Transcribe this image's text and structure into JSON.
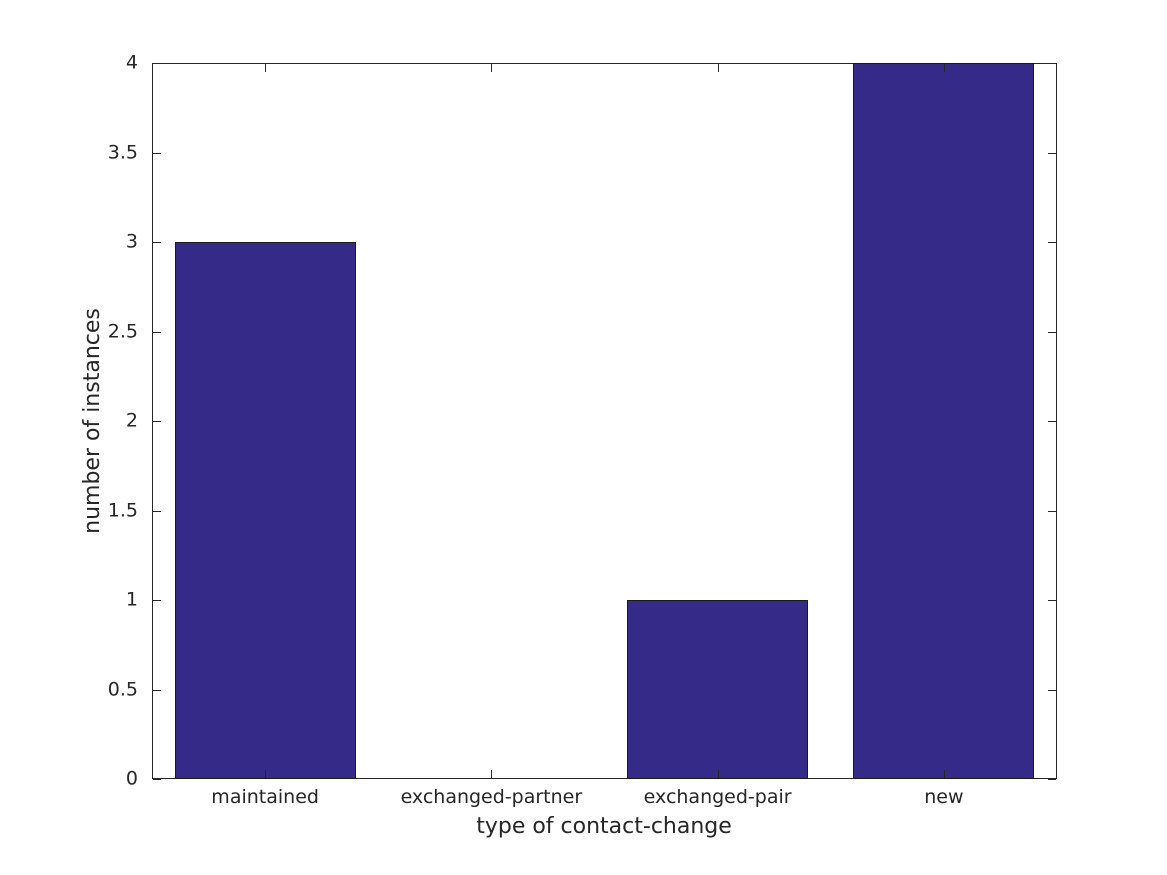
{
  "chart_data": {
    "type": "bar",
    "title": "",
    "categories": [
      "maintained",
      "exchanged-partner",
      "exchanged-pair",
      "new"
    ],
    "values": [
      3,
      0,
      1,
      4
    ],
    "xlabel": "type of contact-change",
    "ylabel": "number of instances",
    "ylim": [
      0,
      4
    ],
    "yticks": [
      0,
      0.5,
      1,
      1.5,
      2,
      2.5,
      3,
      3.5,
      4
    ],
    "ytick_labels": [
      "0",
      "0.5",
      "1",
      "1.5",
      "2",
      "2.5",
      "3",
      "3.5",
      "4"
    ],
    "bar_width_fraction": 0.8,
    "bar_color": "#352A87",
    "bar_edge_color": "#1a1a1a",
    "axis_color": "#262626",
    "background_color": "#ffffff",
    "grid": false,
    "legend": null,
    "tick_direction": "in",
    "box": true
  }
}
